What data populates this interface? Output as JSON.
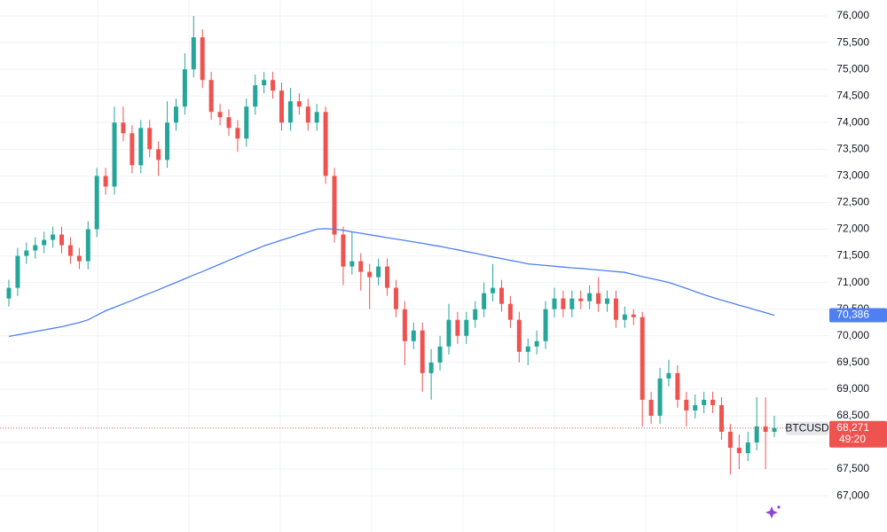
{
  "chart_data": {
    "type": "candlestick",
    "symbol": "BTCUSD",
    "up_color": "#26a69a",
    "down_color": "#ef5350",
    "open": [
      70700,
      70900,
      71500,
      71600,
      71700,
      71800,
      71900,
      71700,
      71500,
      71400,
      72000,
      73000,
      72800,
      74000,
      73800,
      73200,
      73900,
      73500,
      73300,
      74000,
      74300,
      75000,
      75600,
      74800,
      74200,
      74100,
      73900,
      73700,
      74300,
      74700,
      74800,
      74600,
      74000,
      74400,
      74300,
      74000,
      74200,
      73000,
      71900,
      71300,
      71400,
      71200,
      71100,
      71300,
      70900,
      70500,
      69900,
      70100,
      69300,
      69500,
      69800,
      70300,
      70000,
      70300,
      70500,
      70800,
      70900,
      70600,
      70300,
      69700,
      69800,
      69900,
      70500,
      70700,
      70500,
      70700,
      70650,
      70800,
      70600,
      70700,
      70300,
      70400,
      70350,
      68800,
      68500,
      69200,
      69300,
      68800,
      68600,
      68700,
      68800,
      68700,
      68200,
      67900,
      67800,
      68000,
      68300,
      68200
    ],
    "high": [
      71050,
      71650,
      71750,
      71850,
      71950,
      72050,
      72050,
      71850,
      71650,
      72150,
      73150,
      73150,
      74300,
      74300,
      73950,
      74050,
      74050,
      73650,
      74400,
      74450,
      75300,
      76000,
      75750,
      74950,
      74350,
      74250,
      74050,
      74450,
      74900,
      74950,
      74950,
      74750,
      74650,
      74550,
      74450,
      74350,
      74300,
      73150,
      72050,
      71950,
      71550,
      71350,
      71450,
      71450,
      71050,
      70650,
      70250,
      70250,
      69750,
      70000,
      70600,
      70450,
      70450,
      70650,
      71000,
      71350,
      71050,
      70750,
      70450,
      69950,
      70100,
      70650,
      70900,
      70850,
      70850,
      70850,
      70950,
      71100,
      70850,
      70850,
      70550,
      70500,
      70450,
      68950,
      69400,
      69550,
      69450,
      68950,
      68900,
      68950,
      68950,
      68850,
      68350,
      68150,
      68200,
      68850,
      68850,
      68500
    ],
    "low": [
      70550,
      70750,
      71350,
      71450,
      71550,
      71650,
      71550,
      71350,
      71250,
      71250,
      71850,
      72650,
      72650,
      73650,
      73050,
      73050,
      73350,
      73000,
      73150,
      73850,
      74150,
      74850,
      74650,
      74050,
      73950,
      73750,
      73450,
      73550,
      74150,
      74550,
      74450,
      73850,
      73850,
      74150,
      73850,
      73850,
      72850,
      71750,
      70950,
      71150,
      70850,
      70500,
      70950,
      70750,
      70350,
      69450,
      69750,
      68950,
      68800,
      69350,
      69650,
      69850,
      69850,
      70150,
      70350,
      70650,
      70450,
      70150,
      69500,
      69450,
      69650,
      69750,
      70350,
      70350,
      70350,
      70500,
      70500,
      70450,
      70450,
      70150,
      70150,
      70200,
      68300,
      68350,
      68350,
      69050,
      68650,
      68300,
      68450,
      68550,
      68550,
      68050,
      67400,
      67500,
      67650,
      67850,
      67500,
      68100
    ],
    "close": [
      70900,
      71500,
      71600,
      71700,
      71800,
      71900,
      71700,
      71500,
      71400,
      72000,
      73000,
      72800,
      74000,
      73800,
      73200,
      73900,
      73500,
      73300,
      74000,
      74300,
      75000,
      75600,
      74800,
      74200,
      74100,
      73900,
      73700,
      74300,
      74700,
      74800,
      74600,
      74000,
      74400,
      74300,
      74000,
      74200,
      73000,
      71900,
      71300,
      71400,
      71200,
      71100,
      71300,
      70900,
      70500,
      69900,
      70100,
      69300,
      69500,
      69800,
      70300,
      70000,
      70300,
      70500,
      70800,
      70900,
      70600,
      70300,
      69700,
      69800,
      69900,
      70500,
      70700,
      70500,
      70700,
      70650,
      70800,
      70600,
      70700,
      70300,
      70400,
      70350,
      68800,
      68500,
      69200,
      69300,
      68800,
      68600,
      68700,
      68800,
      68700,
      68200,
      67900,
      67800,
      68000,
      68300,
      68200,
      68271
    ],
    "ma": {
      "color": "#4f7ff0",
      "label": "70,386",
      "values": [
        69990,
        70020,
        70050,
        70080,
        70110,
        70140,
        70170,
        70210,
        70250,
        70300,
        70385,
        70470,
        70535,
        70600,
        70665,
        70735,
        70800,
        70865,
        70935,
        71000,
        71070,
        71140,
        71205,
        71275,
        71345,
        71415,
        71485,
        71555,
        71620,
        71690,
        71740,
        71795,
        71845,
        71900,
        71950,
        72000,
        72010,
        72000,
        71980,
        71950,
        71925,
        71895,
        71870,
        71840,
        71815,
        71790,
        71760,
        71735,
        71705,
        71680,
        71645,
        71615,
        71580,
        71550,
        71515,
        71480,
        71450,
        71415,
        71385,
        71350,
        71335,
        71320,
        71305,
        71290,
        71275,
        71265,
        71250,
        71235,
        71220,
        71205,
        71190,
        71150,
        71110,
        71075,
        71040,
        71000,
        70945,
        70890,
        70830,
        70775,
        70720,
        70670,
        70625,
        70575,
        70530,
        70480,
        70435,
        70386
      ]
    },
    "price_line": {
      "value": 68271,
      "label": "68,271",
      "countdown": "49:20"
    },
    "ylim": [
      66320,
      76300
    ],
    "yticks": [
      {
        "value": 67000,
        "label": "67,000"
      },
      {
        "value": 67500,
        "label": "67,500"
      },
      {
        "value": 68000,
        "label": "68,000"
      },
      {
        "value": 68500,
        "label": "68,500"
      },
      {
        "value": 69000,
        "label": "69,000"
      },
      {
        "value": 69500,
        "label": "69,500"
      },
      {
        "value": 70000,
        "label": "70,000"
      },
      {
        "value": 70500,
        "label": "70,500"
      },
      {
        "value": 71000,
        "label": "71,000"
      },
      {
        "value": 71500,
        "label": "71,500"
      },
      {
        "value": 72000,
        "label": "72,000"
      },
      {
        "value": 72500,
        "label": "72,500"
      },
      {
        "value": 73000,
        "label": "73,000"
      },
      {
        "value": 73500,
        "label": "73,500"
      },
      {
        "value": 74000,
        "label": "74,000"
      },
      {
        "value": 74500,
        "label": "74,500"
      },
      {
        "value": 75000,
        "label": "75,000"
      },
      {
        "value": 75500,
        "label": "75,500"
      },
      {
        "value": 76000,
        "label": "76,000"
      }
    ],
    "grid": true
  }
}
